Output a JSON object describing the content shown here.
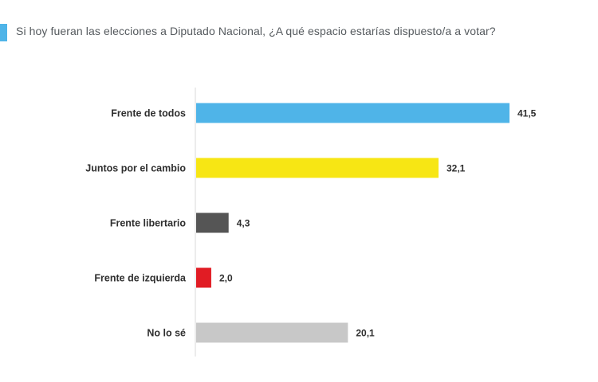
{
  "colors": {
    "accent": "#4fb4e8"
  },
  "chart_data": {
    "type": "bar",
    "orientation": "horizontal",
    "title": "Si hoy fueran las elecciones a Diputado Nacional, ¿A qué espacio estarías dispuesto/a a votar?",
    "categories": [
      "Frente de todos",
      "Juntos por el cambio",
      "Frente libertario",
      "Frente de izquierda",
      "No lo sé"
    ],
    "values": [
      41.5,
      32.1,
      4.3,
      2.0,
      20.1
    ],
    "value_labels": [
      "41,5",
      "32,1",
      "4,3",
      "2,0",
      "20,1"
    ],
    "colors": [
      "#4fb4e8",
      "#f7e614",
      "#555555",
      "#e11c24",
      "#c8c8c8"
    ],
    "xlim": [
      0,
      45
    ],
    "grid": false,
    "legend": "none"
  }
}
